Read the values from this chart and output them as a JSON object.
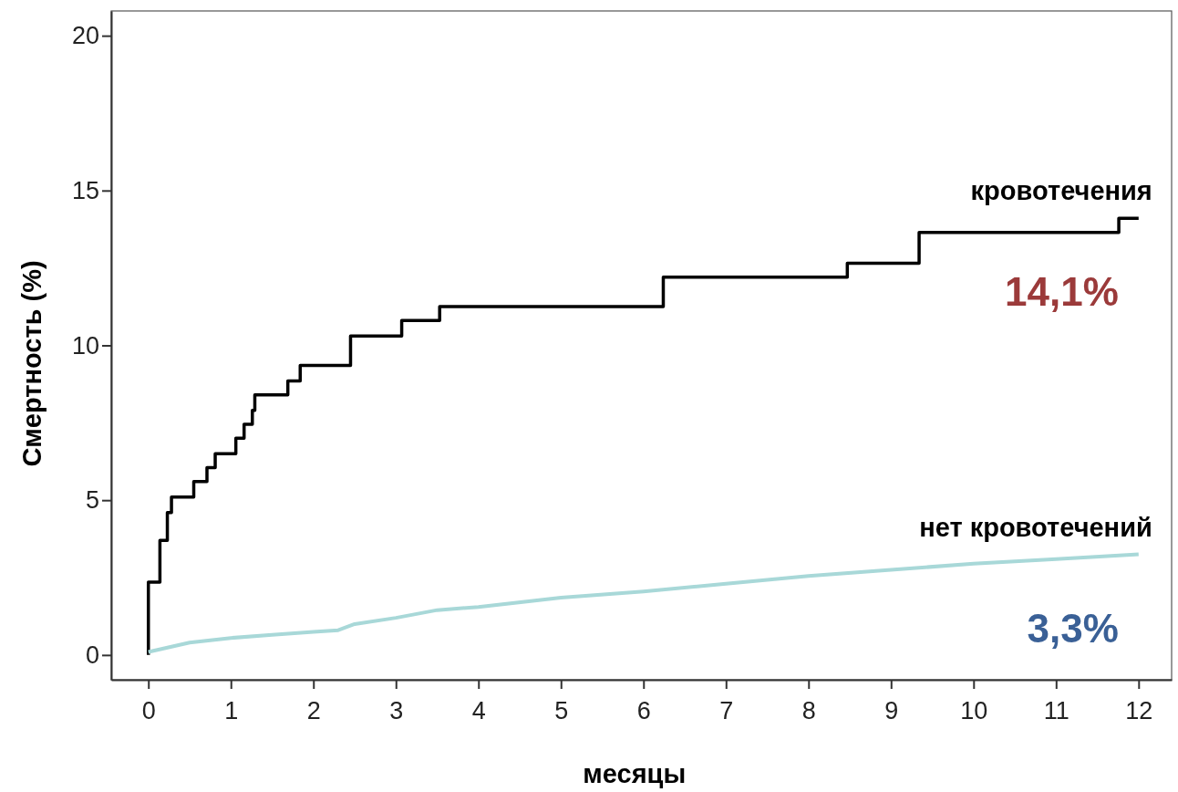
{
  "chart_data": {
    "type": "line",
    "xlabel": "месяцы",
    "ylabel": "Смертность (%)",
    "xlim": [
      -0.45,
      12.4
    ],
    "ylim": [
      -0.8,
      20.8
    ],
    "xticks": [
      0,
      1,
      2,
      3,
      4,
      5,
      6,
      7,
      8,
      9,
      10,
      11,
      12
    ],
    "yticks": [
      0,
      5,
      10,
      15,
      20
    ],
    "grid": false,
    "series": [
      {
        "name": "кровотечения",
        "type": "step",
        "color": "#000000",
        "x": [
          0,
          0,
          0.14,
          0.23,
          0.28,
          0.55,
          0.71,
          0.81,
          1.06,
          1.16,
          1.26,
          1.29,
          1.69,
          1.84,
          2.45,
          3.07,
          3.53,
          6.24,
          8.47,
          9.34,
          11.76,
          12
        ],
        "values": [
          0,
          2.35,
          3.7,
          4.6,
          5.1,
          5.6,
          6.05,
          6.5,
          7.0,
          7.45,
          7.9,
          8.4,
          8.85,
          9.35,
          10.3,
          10.8,
          11.25,
          12.2,
          12.65,
          13.65,
          14.1,
          14.1
        ]
      },
      {
        "name": "нет кровотечений",
        "type": "line",
        "color": "#a8d8d8",
        "x": [
          0,
          0.5,
          1,
          1.5,
          2,
          2.3,
          2.5,
          3,
          3.5,
          4,
          5,
          6,
          7,
          8,
          9,
          10,
          11,
          12
        ],
        "values": [
          0.1,
          0.4,
          0.55,
          0.65,
          0.75,
          0.8,
          1.0,
          1.2,
          1.45,
          1.55,
          1.85,
          2.05,
          2.3,
          2.55,
          2.75,
          2.95,
          3.1,
          3.25
        ]
      }
    ],
    "annotations": [
      {
        "text": "14,1%",
        "x": 12,
        "y": 14.1
      },
      {
        "text": "3,3%",
        "x": 12,
        "y": 3.25
      }
    ]
  }
}
